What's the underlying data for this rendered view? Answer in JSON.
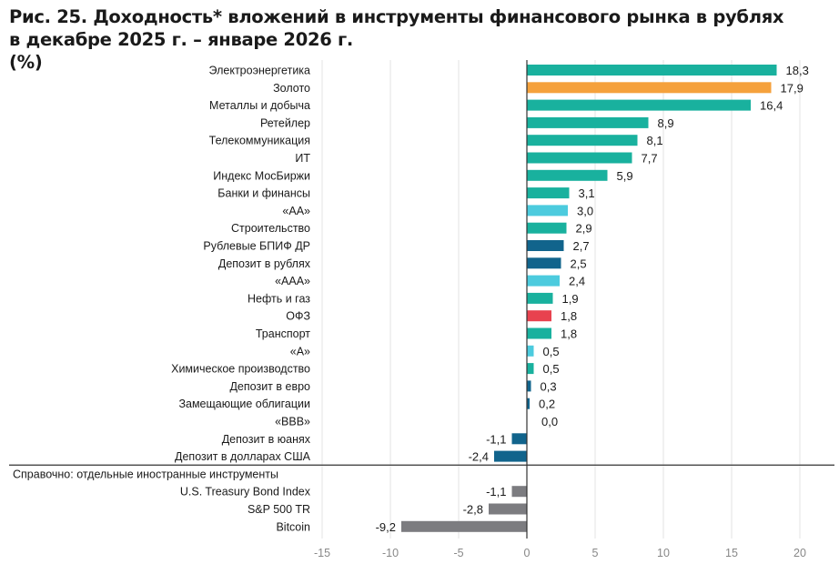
{
  "chart_data": {
    "type": "bar",
    "orientation": "horizontal",
    "title_lines": [
      "Рис. 25. Доходность* вложений в инструменты финансового рынка в рублях",
      "в декабре 2025 г. – январе 2026 г.",
      "(%)"
    ],
    "xlim": [
      -15,
      22
    ],
    "xticks": [
      -15,
      -10,
      -5,
      0,
      5,
      10,
      15,
      20
    ],
    "xtick_labels": [
      "-15",
      "-10",
      "-5",
      "0",
      "5",
      "10",
      "15",
      "20"
    ],
    "grid": "vertical",
    "colors": {
      "teal": "#19b19e",
      "orange": "#f5a13c",
      "dark_blue": "#11648c",
      "light_blue": "#4ccbde",
      "red": "#e8424f",
      "grey": "#7c7c80"
    },
    "categories": [
      {
        "label": "Электроэнергетика",
        "value": 18.3,
        "text": "18,3",
        "color": "teal"
      },
      {
        "label": "Золото",
        "value": 17.9,
        "text": "17,9",
        "color": "orange"
      },
      {
        "label": "Металлы и добыча",
        "value": 16.4,
        "text": "16,4",
        "color": "teal"
      },
      {
        "label": "Ретейлер",
        "value": 8.9,
        "text": "8,9",
        "color": "teal"
      },
      {
        "label": "Телекоммуникация",
        "value": 8.1,
        "text": "8,1",
        "color": "teal"
      },
      {
        "label": "ИТ",
        "value": 7.7,
        "text": "7,7",
        "color": "teal"
      },
      {
        "label": "Индекс МосБиржи",
        "value": 5.9,
        "text": "5,9",
        "color": "teal"
      },
      {
        "label": "Банки и финансы",
        "value": 3.1,
        "text": "3,1",
        "color": "teal"
      },
      {
        "label": "«AA»",
        "value": 3.0,
        "text": "3,0",
        "color": "light_blue"
      },
      {
        "label": "Строительство",
        "value": 2.9,
        "text": "2,9",
        "color": "teal"
      },
      {
        "label": "Рублевые БПИФ ДР",
        "value": 2.7,
        "text": "2,7",
        "color": "dark_blue"
      },
      {
        "label": "Депозит в рублях",
        "value": 2.5,
        "text": "2,5",
        "color": "dark_blue"
      },
      {
        "label": "«AAA»",
        "value": 2.4,
        "text": "2,4",
        "color": "light_blue"
      },
      {
        "label": "Нефть и газ",
        "value": 1.9,
        "text": "1,9",
        "color": "teal"
      },
      {
        "label": "ОФЗ",
        "value": 1.8,
        "text": "1,8",
        "color": "red"
      },
      {
        "label": "Транспорт",
        "value": 1.8,
        "text": "1,8",
        "color": "teal"
      },
      {
        "label": "«A»",
        "value": 0.5,
        "text": "0,5",
        "color": "light_blue"
      },
      {
        "label": "Химическое производство",
        "value": 0.5,
        "text": "0,5",
        "color": "teal"
      },
      {
        "label": "Депозит в евро",
        "value": 0.3,
        "text": "0,3",
        "color": "dark_blue"
      },
      {
        "label": "Замещающие облигации",
        "value": 0.2,
        "text": "0,2",
        "color": "dark_blue"
      },
      {
        "label": "«BBB»",
        "value": 0.0,
        "text": "0,0",
        "color": "light_blue"
      },
      {
        "label": "Депозит в юанях",
        "value": -1.1,
        "text": "-1,1",
        "color": "dark_blue"
      },
      {
        "label": "Депозит в долларах США",
        "value": -2.4,
        "text": "-2,4",
        "color": "dark_blue"
      }
    ],
    "reference_section": {
      "label": "Справочно: отдельные иностранные инструменты",
      "categories": [
        {
          "label": "U.S. Treasury Bond Index",
          "value": -1.1,
          "text": "-1,1",
          "color": "grey"
        },
        {
          "label": "S&P 500 TR",
          "value": -2.8,
          "text": "-2,8",
          "color": "grey"
        },
        {
          "label": "Bitcoin",
          "value": -9.2,
          "text": "-9,2",
          "color": "grey"
        }
      ]
    }
  }
}
